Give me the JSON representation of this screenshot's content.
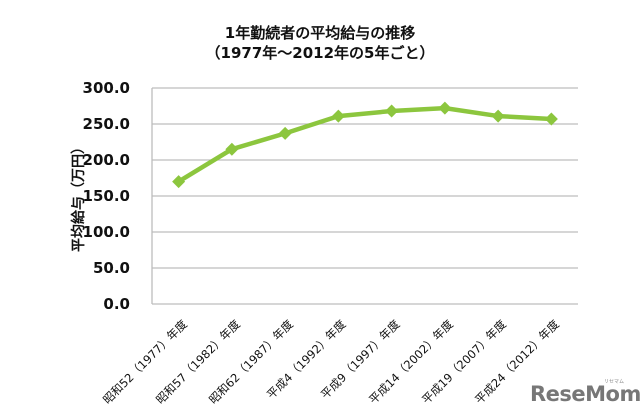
{
  "chart_data": {
    "type": "line",
    "title": "1年勤続者の平均給与の推移",
    "subtitle": "（1977年～2012年の5年ごと）",
    "xlabel": "",
    "ylabel": "平均給与（万円）",
    "ylim": [
      0,
      300
    ],
    "yticks": [
      "300.0",
      "250.0",
      "200.0",
      "150.0",
      "100.0",
      "50.0",
      "0.0"
    ],
    "grid": true,
    "legend": "none",
    "categories": [
      "昭和52（1977）年度",
      "昭和57（1982）年度",
      "昭和62（1987）年度",
      "平成4（1992）年度",
      "平成9（1997）年度",
      "平成14（2002）年度",
      "平成19（2007）年度",
      "平成24（2012）年度"
    ],
    "series": [
      {
        "name": "平均給与",
        "values": [
          170,
          215,
          237,
          261,
          268,
          272,
          261,
          257
        ],
        "color": "#8cc63e",
        "marker": "diamond"
      }
    ]
  },
  "watermark": {
    "logo": "ReseMom",
    "kana": "リセマム"
  }
}
